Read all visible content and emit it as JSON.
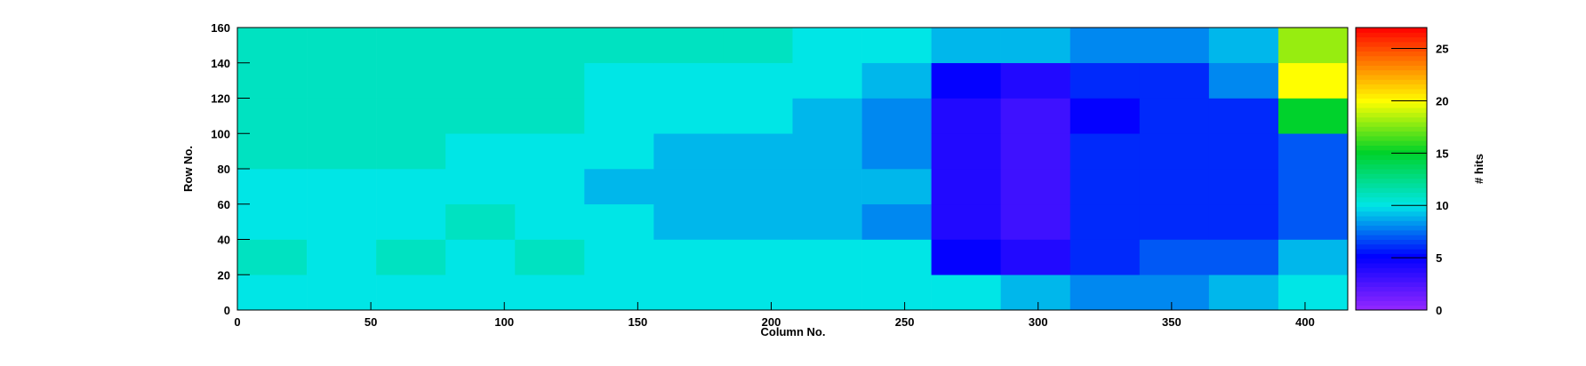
{
  "chart_data": {
    "type": "heatmap",
    "xlabel": "Column No.",
    "ylabel": "Row No.",
    "zlabel": "# hits",
    "xbins": [
      0,
      26,
      52,
      78,
      104,
      130,
      156,
      182,
      208,
      234,
      260,
      286,
      312,
      338,
      364,
      390,
      416
    ],
    "ybins": [
      0,
      20,
      40,
      60,
      80,
      100,
      120,
      140,
      160
    ],
    "z": [
      [
        10,
        10,
        10,
        10,
        10,
        10,
        10,
        10,
        10,
        10,
        10,
        9,
        8,
        8,
        9,
        10
      ],
      [
        11,
        10,
        11,
        10,
        11,
        10,
        10,
        10,
        10,
        10,
        5,
        4,
        6,
        7,
        7,
        9
      ],
      [
        10,
        10,
        10,
        11,
        10,
        10,
        9,
        9,
        9,
        8,
        4,
        3,
        6,
        6,
        6,
        7
      ],
      [
        10,
        10,
        10,
        10,
        10,
        9,
        9,
        9,
        9,
        9,
        4,
        3,
        6,
        6,
        6,
        7
      ],
      [
        11,
        11,
        11,
        10,
        10,
        10,
        9,
        9,
        9,
        8,
        4,
        3,
        6,
        6,
        6,
        7
      ],
      [
        11,
        11,
        11,
        11,
        11,
        10,
        10,
        10,
        9,
        8,
        4,
        3,
        5,
        6,
        6,
        15
      ],
      [
        11,
        11,
        11,
        11,
        11,
        10,
        10,
        10,
        10,
        9,
        5,
        4,
        6,
        6,
        8,
        20
      ],
      [
        11,
        11,
        11,
        11,
        11,
        11,
        11,
        11,
        10,
        10,
        9,
        9,
        8,
        8,
        9,
        18
      ]
    ],
    "xlim": [
      0,
      416
    ],
    "ylim": [
      0,
      160
    ],
    "zlim": [
      0,
      27
    ],
    "xticks": [
      0,
      50,
      100,
      150,
      200,
      250,
      300,
      350,
      400
    ],
    "yticks": [
      0,
      20,
      40,
      60,
      80,
      100,
      120,
      140,
      160
    ],
    "zticks": [
      0,
      5,
      10,
      15,
      20,
      25
    ]
  }
}
